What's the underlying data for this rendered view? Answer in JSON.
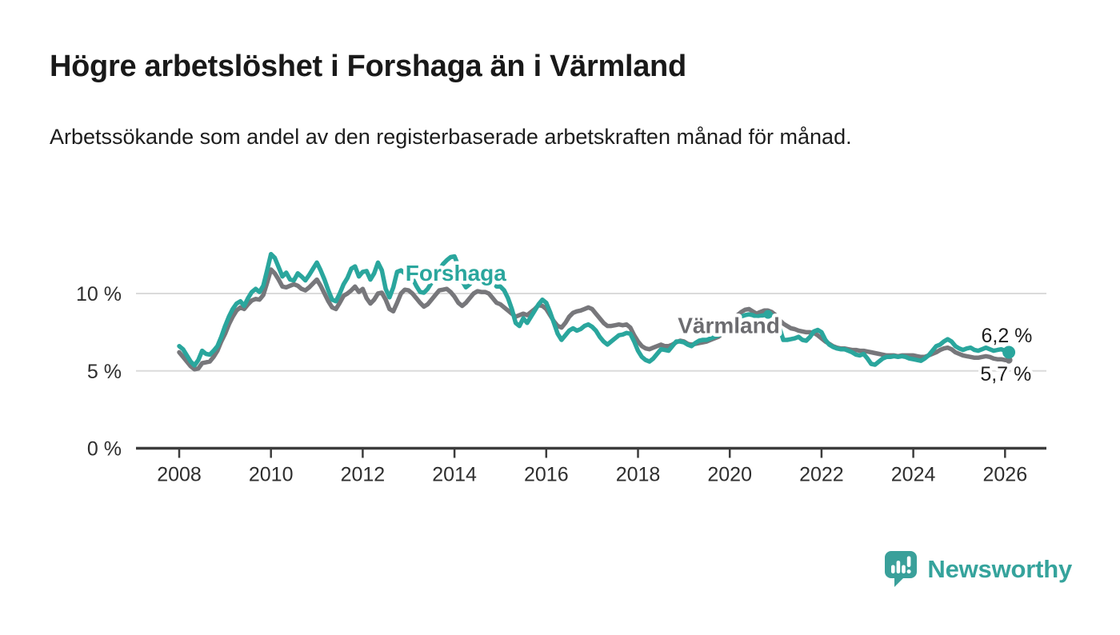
{
  "header": {
    "title": "Högre arbetslöshet i Forshaga än i Värmland",
    "subtitle": "Arbetssökande som andel av den registerbaserade arbetskraften månad för månad."
  },
  "chart_data": {
    "type": "line",
    "unit": "%",
    "x_start_year": 2008,
    "points_per_year": 12,
    "x_ticks": [
      2008,
      2010,
      2012,
      2014,
      2016,
      2018,
      2020,
      2022,
      2024,
      2026
    ],
    "y_ticks": [
      {
        "value": 0,
        "label": "0 %"
      },
      {
        "value": 5,
        "label": "5 %"
      },
      {
        "value": 10,
        "label": "10 %"
      }
    ],
    "ylim": [
      0,
      13.5
    ],
    "grid": true,
    "colors": {
      "forshaga": "#2AA69D",
      "varmland": "#77777B",
      "grid": "#DBDBDB",
      "axis": "#3C3C3C",
      "tick_text": "#2E2E2E",
      "value_label": "#1D1D1D"
    },
    "series": [
      {
        "name": "Forshaga",
        "color": "#2AA69D",
        "end_dot_radius": 8,
        "values": [
          6.6,
          6.4,
          6.0,
          5.6,
          5.35,
          5.7,
          6.3,
          6.1,
          6.05,
          6.3,
          6.6,
          7.2,
          7.9,
          8.5,
          9.0,
          9.35,
          9.5,
          9.2,
          9.7,
          10.1,
          10.3,
          10.1,
          10.5,
          11.5,
          12.55,
          12.3,
          11.7,
          11.1,
          11.35,
          10.9,
          10.85,
          11.3,
          11.1,
          10.85,
          11.2,
          11.6,
          12.0,
          11.5,
          10.9,
          10.2,
          9.6,
          9.5,
          10.0,
          10.6,
          11.0,
          11.6,
          11.75,
          11.1,
          11.4,
          11.45,
          10.9,
          11.3,
          12.0,
          11.5,
          10.3,
          9.75,
          10.4,
          11.4,
          11.5,
          11.3,
          11.35,
          11.0,
          10.5,
          10.1,
          10.05,
          10.3,
          10.7,
          11.1,
          11.5,
          11.9,
          12.15,
          12.35,
          12.4,
          11.8,
          10.8,
          10.4,
          10.6,
          11.0,
          11.35,
          11.2,
          11.05,
          11.3,
          10.9,
          10.45,
          10.45,
          10.2,
          9.7,
          9.0,
          8.1,
          7.9,
          8.4,
          8.1,
          8.5,
          8.9,
          9.3,
          9.6,
          9.4,
          8.8,
          8.1,
          7.4,
          7.0,
          7.3,
          7.6,
          7.75,
          7.6,
          7.7,
          7.9,
          8.0,
          7.85,
          7.6,
          7.2,
          6.9,
          6.7,
          6.9,
          7.1,
          7.3,
          7.35,
          7.45,
          7.4,
          6.9,
          6.3,
          5.9,
          5.7,
          5.6,
          5.8,
          6.1,
          6.4,
          6.35,
          6.3,
          6.6,
          6.9,
          6.9,
          6.85,
          6.7,
          6.6,
          6.8,
          6.95,
          7.0,
          7.0,
          7.1,
          7.2,
          7.3,
          7.4,
          7.6,
          7.8,
          8.0,
          8.3,
          8.5,
          8.6,
          8.65,
          8.6,
          8.5,
          8.55,
          8.6,
          8.65,
          8.6,
          8.4,
          7.8,
          7.0,
          7.0,
          7.05,
          7.1,
          7.2,
          7.0,
          6.95,
          7.2,
          7.55,
          7.65,
          7.5,
          7.0,
          6.7,
          6.55,
          6.45,
          6.4,
          6.4,
          6.3,
          6.2,
          6.05,
          6.0,
          6.1,
          5.8,
          5.45,
          5.4,
          5.6,
          5.8,
          5.9,
          5.9,
          5.95,
          5.9,
          5.95,
          5.9,
          5.8,
          5.75,
          5.7,
          5.65,
          5.8,
          6.0,
          6.3,
          6.6,
          6.7,
          6.9,
          7.05,
          6.9,
          6.6,
          6.45,
          6.35,
          6.45,
          6.5,
          6.35,
          6.3,
          6.4,
          6.5,
          6.4,
          6.3,
          6.35,
          6.4,
          6.3,
          6.2
        ]
      },
      {
        "name": "Värmland",
        "color": "#77777B",
        "end_dot_radius": 4.5,
        "values": [
          6.2,
          5.9,
          5.6,
          5.3,
          5.1,
          5.15,
          5.5,
          5.55,
          5.6,
          5.9,
          6.3,
          6.9,
          7.4,
          8.0,
          8.5,
          8.9,
          9.1,
          9.0,
          9.3,
          9.55,
          9.65,
          9.6,
          9.9,
          10.7,
          11.55,
          11.3,
          10.9,
          10.45,
          10.4,
          10.5,
          10.6,
          10.5,
          10.3,
          10.2,
          10.4,
          10.65,
          10.9,
          10.5,
          10.0,
          9.5,
          9.1,
          9.0,
          9.4,
          9.85,
          10.0,
          10.2,
          10.45,
          10.1,
          10.3,
          9.7,
          9.35,
          9.6,
          10.0,
          10.05,
          9.6,
          9.0,
          8.85,
          9.4,
          10.0,
          10.25,
          10.2,
          10.0,
          9.7,
          9.4,
          9.15,
          9.3,
          9.6,
          9.9,
          10.2,
          10.25,
          10.3,
          10.1,
          9.8,
          9.4,
          9.2,
          9.4,
          9.7,
          10.0,
          10.15,
          10.1,
          10.1,
          10.0,
          9.7,
          9.4,
          9.3,
          9.1,
          8.9,
          8.7,
          8.5,
          8.6,
          8.7,
          8.6,
          8.8,
          9.0,
          9.25,
          9.2,
          9.0,
          8.6,
          8.2,
          7.9,
          7.8,
          8.1,
          8.5,
          8.75,
          8.85,
          8.9,
          9.0,
          9.1,
          9.0,
          8.7,
          8.4,
          8.1,
          7.9,
          7.9,
          7.95,
          8.0,
          7.95,
          8.0,
          7.8,
          7.3,
          6.9,
          6.6,
          6.45,
          6.4,
          6.5,
          6.6,
          6.7,
          6.6,
          6.6,
          6.7,
          6.85,
          6.95,
          6.9,
          6.75,
          6.7,
          6.75,
          6.8,
          6.85,
          6.9,
          7.0,
          7.1,
          7.2,
          7.4,
          7.7,
          8.0,
          8.3,
          8.6,
          8.8,
          8.95,
          9.0,
          8.85,
          8.7,
          8.8,
          8.9,
          8.9,
          8.8,
          8.6,
          8.3,
          8.05,
          7.9,
          7.75,
          7.7,
          7.6,
          7.55,
          7.5,
          7.5,
          7.45,
          7.3,
          7.1,
          6.9,
          6.75,
          6.6,
          6.5,
          6.45,
          6.45,
          6.4,
          6.35,
          6.35,
          6.3,
          6.3,
          6.25,
          6.2,
          6.15,
          6.1,
          6.05,
          6.0,
          6.0,
          6.0,
          5.95,
          6.0,
          6.0,
          6.0,
          6.0,
          5.95,
          5.9,
          5.9,
          6.0,
          6.1,
          6.2,
          6.35,
          6.45,
          6.5,
          6.4,
          6.2,
          6.1,
          6.0,
          5.95,
          5.9,
          5.85,
          5.85,
          5.9,
          5.95,
          5.9,
          5.8,
          5.75,
          5.75,
          5.7,
          5.7
        ]
      }
    ],
    "markers": [
      {
        "series_index": 0,
        "month_index": 154,
        "radius": 5.5
      }
    ],
    "annotations": [
      {
        "text": "Forshaga",
        "x": 2014.03,
        "y": 11.35,
        "color": "#2AA69D",
        "role": "series-label",
        "anchor": "middle",
        "size": 28,
        "bold": true,
        "halo": 9
      },
      {
        "text": "Värmland",
        "x": 2019.98,
        "y": 7.95,
        "color": "#6C6C70",
        "role": "series-label",
        "anchor": "middle",
        "size": 28,
        "bold": true,
        "halo": 9
      },
      {
        "text": "6,2 %",
        "x": 2025.48,
        "y": 7.25,
        "color": "#1D1D1D",
        "role": "value-label",
        "anchor": "start",
        "size": 25,
        "bold": false,
        "halo": 8
      },
      {
        "text": "5,7 %",
        "x": 2025.46,
        "y": 4.78,
        "color": "#1D1D1D",
        "role": "value-label",
        "anchor": "start",
        "size": 25,
        "bold": false,
        "halo": 8
      }
    ]
  },
  "footer": {
    "brand": "Newsworthy",
    "logo_icon": "speech-bubble-bar-chart",
    "brand_color": "#35A39C"
  }
}
